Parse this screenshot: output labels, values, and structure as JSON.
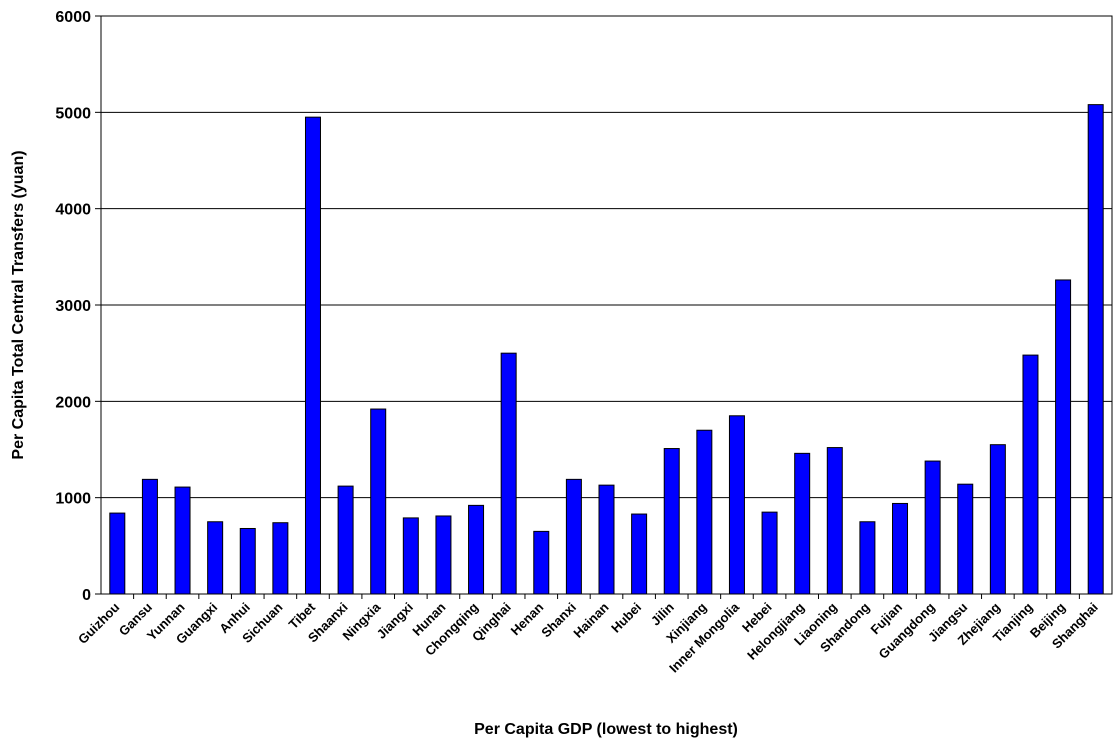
{
  "chart_data": {
    "type": "bar",
    "title": "",
    "xlabel": "Per Capita GDP (lowest to highest)",
    "ylabel": "Per Capita Total Central Transfers (yuan)",
    "ylim": [
      0,
      6000
    ],
    "yticks": [
      0,
      1000,
      2000,
      3000,
      4000,
      5000,
      6000
    ],
    "grid": true,
    "legend": "none",
    "bar_color": "#0000FF",
    "categories": [
      "Guizhou",
      "Gansu",
      "Yunnan",
      "Guangxi",
      "Anhui",
      "Sichuan",
      "Tibet",
      "Shaanxi",
      "Ningxia",
      "Jiangxi",
      "Hunan",
      "Chongqing",
      "Qinghai",
      "Henan",
      "Shanxi",
      "Hainan",
      "Hubei",
      "Jilin",
      "Xinjiang",
      "Inner Mongolia",
      "Hebei",
      "Helongjiang",
      "Liaoning",
      "Shandong",
      "Fujian",
      "Guangdong",
      "Jiangsu",
      "Zhejiang",
      "Tianjing",
      "Beijing",
      "Shanghai"
    ],
    "values": [
      840,
      1190,
      1110,
      750,
      680,
      740,
      4950,
      1120,
      1920,
      790,
      810,
      920,
      2500,
      650,
      1190,
      1130,
      830,
      1510,
      1700,
      1850,
      850,
      1460,
      1520,
      750,
      940,
      1380,
      1140,
      1550,
      2480,
      3260,
      5080
    ]
  }
}
